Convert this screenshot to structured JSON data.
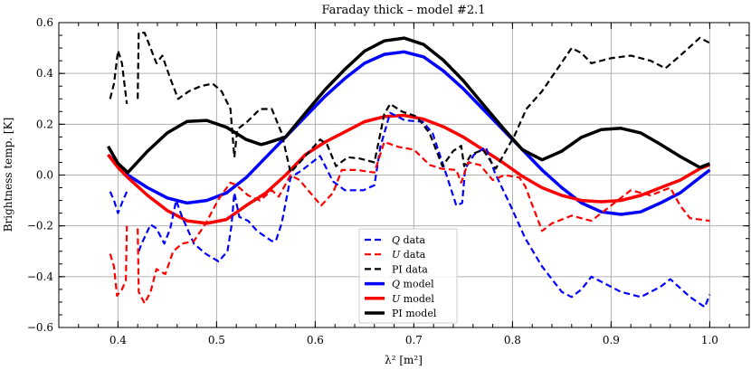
{
  "chart_data": {
    "type": "line",
    "title": "Faraday thick – model #2.1",
    "xlabel": "λ² [m²]",
    "ylabel": "Brightness temp. [K]",
    "xlim": [
      0.34,
      1.04
    ],
    "ylim": [
      -0.6,
      0.6
    ],
    "xticks": [
      0.4,
      0.5,
      0.6,
      0.7,
      0.8,
      0.9,
      1.0
    ],
    "xtick_labels": [
      "0.4",
      "0.5",
      "0.6",
      "0.7",
      "0.8",
      "0.9",
      "1.0"
    ],
    "yticks": [
      -0.6,
      -0.4,
      -0.2,
      0.0,
      0.2,
      0.4,
      0.6
    ],
    "ytick_labels": [
      "−0.6",
      "−0.4",
      "−0.2",
      "0.0",
      "0.2",
      "0.4",
      "0.6"
    ],
    "grid": true,
    "legend_placement": "bottom-center",
    "series": [
      {
        "name": "Q data",
        "label_italic": "Q",
        "label_rest": " data",
        "style": "dashed",
        "color": "#0000ff",
        "x": [
          0.392,
          0.396,
          0.4,
          0.405,
          0.409,
          null,
          0.421,
          0.424,
          0.433,
          0.439,
          0.447,
          0.453,
          0.459,
          0.465,
          0.477,
          0.489,
          0.502,
          0.511,
          0.515,
          0.518,
          0.523,
          0.532,
          0.541,
          0.556,
          0.56,
          0.566,
          0.575,
          0.587,
          0.605,
          0.618,
          0.63,
          0.649,
          0.66,
          0.666,
          0.676,
          0.691,
          0.709,
          0.719,
          0.731,
          0.743,
          0.749,
          0.752,
          0.761,
          0.773,
          0.782,
          0.798,
          0.813,
          0.83,
          0.85,
          0.86,
          0.87,
          0.88,
          0.89,
          0.91,
          0.93,
          0.95,
          0.96,
          0.98,
          0.995,
          1.0
        ],
        "y": [
          -0.065,
          -0.1,
          -0.15,
          -0.1,
          -0.065,
          null,
          -0.3,
          -0.27,
          -0.195,
          -0.21,
          -0.27,
          -0.21,
          -0.1,
          -0.165,
          -0.27,
          -0.31,
          -0.34,
          -0.3,
          -0.2,
          -0.07,
          -0.165,
          -0.18,
          -0.22,
          -0.26,
          -0.26,
          -0.19,
          -0.01,
          0.02,
          0.075,
          -0.025,
          -0.06,
          -0.06,
          -0.04,
          0.11,
          0.245,
          0.215,
          0.21,
          0.165,
          0.025,
          -0.12,
          -0.11,
          0.025,
          0.08,
          0.11,
          0.01,
          -0.12,
          -0.25,
          -0.36,
          -0.46,
          -0.48,
          -0.45,
          -0.4,
          -0.42,
          -0.46,
          -0.48,
          -0.44,
          -0.41,
          -0.48,
          -0.52,
          -0.47
        ]
      },
      {
        "name": "U data",
        "label_italic": "U",
        "label_rest": " data",
        "style": "dashed",
        "color": "#ff0000",
        "x": [
          0.392,
          0.396,
          0.399,
          0.404,
          0.408,
          0.409,
          null,
          0.42,
          0.421,
          0.427,
          0.433,
          0.439,
          0.448,
          0.456,
          0.465,
          0.477,
          0.489,
          0.502,
          0.514,
          0.52,
          0.532,
          0.544,
          0.556,
          0.563,
          0.575,
          0.584,
          0.606,
          0.618,
          0.627,
          0.642,
          0.66,
          0.67,
          0.685,
          0.7,
          0.716,
          0.728,
          0.743,
          0.748,
          0.755,
          0.767,
          0.78,
          0.792,
          0.807,
          0.813,
          0.83,
          0.84,
          0.86,
          0.88,
          0.9,
          0.92,
          0.94,
          0.96,
          0.97,
          0.98,
          1.0
        ],
        "y": [
          -0.31,
          -0.36,
          -0.475,
          -0.45,
          -0.415,
          -0.2,
          null,
          -0.21,
          -0.46,
          -0.505,
          -0.46,
          -0.37,
          -0.39,
          -0.3,
          -0.27,
          -0.26,
          -0.19,
          -0.095,
          -0.03,
          -0.04,
          -0.08,
          -0.1,
          -0.06,
          -0.085,
          0.0,
          -0.02,
          -0.12,
          -0.07,
          0.02,
          0.02,
          0.01,
          0.13,
          0.11,
          0.1,
          0.04,
          0.025,
          0.02,
          -0.03,
          0.05,
          0.04,
          -0.02,
          0.0,
          -0.01,
          -0.045,
          -0.22,
          -0.19,
          -0.16,
          -0.18,
          -0.12,
          -0.06,
          -0.08,
          -0.05,
          -0.12,
          -0.17,
          -0.18
        ]
      },
      {
        "name": "PI data",
        "label_italic": "",
        "label_rest": "PI data",
        "style": "dashed",
        "color": "#000000",
        "x": [
          0.392,
          0.396,
          0.4,
          0.404,
          0.409,
          null,
          0.42,
          0.421,
          0.427,
          0.439,
          0.445,
          0.453,
          0.461,
          0.472,
          0.484,
          0.496,
          0.505,
          0.514,
          0.518,
          0.521,
          0.531,
          0.544,
          0.556,
          0.566,
          0.575,
          0.589,
          0.605,
          0.612,
          0.621,
          0.633,
          0.645,
          0.66,
          0.67,
          0.676,
          0.688,
          0.703,
          0.716,
          0.729,
          0.74,
          0.748,
          0.751,
          0.758,
          0.77,
          0.783,
          0.802,
          0.814,
          0.83,
          0.86,
          0.87,
          0.88,
          0.9,
          0.92,
          0.94,
          0.955,
          0.97,
          0.99,
          1.0
        ],
        "y": [
          0.3,
          0.36,
          0.49,
          0.44,
          0.28,
          null,
          0.3,
          0.56,
          0.56,
          0.44,
          0.47,
          0.38,
          0.3,
          0.33,
          0.35,
          0.36,
          0.33,
          0.26,
          0.07,
          0.18,
          0.21,
          0.26,
          0.26,
          0.165,
          0.01,
          0.07,
          0.14,
          0.12,
          0.035,
          0.07,
          0.065,
          0.05,
          0.24,
          0.28,
          0.25,
          0.23,
          0.165,
          0.035,
          0.095,
          0.115,
          0.035,
          0.08,
          0.1,
          0.025,
          0.155,
          0.26,
          0.33,
          0.5,
          0.48,
          0.44,
          0.46,
          0.47,
          0.45,
          0.42,
          0.47,
          0.54,
          0.52
        ]
      },
      {
        "name": "Q model",
        "label_italic": "Q",
        "label_rest": " model",
        "style": "solid",
        "color": "#0000ff",
        "x": [
          0.39,
          0.4,
          0.41,
          0.43,
          0.45,
          0.47,
          0.49,
          0.51,
          0.53,
          0.55,
          0.57,
          0.59,
          0.61,
          0.63,
          0.65,
          0.67,
          0.69,
          0.71,
          0.73,
          0.75,
          0.77,
          0.79,
          0.81,
          0.83,
          0.85,
          0.87,
          0.89,
          0.91,
          0.93,
          0.95,
          0.97,
          0.99,
          1.0
        ],
        "y": [
          0.08,
          0.035,
          0.0,
          -0.05,
          -0.09,
          -0.11,
          -0.1,
          -0.07,
          -0.01,
          0.07,
          0.15,
          0.23,
          0.31,
          0.38,
          0.44,
          0.475,
          0.485,
          0.465,
          0.41,
          0.34,
          0.26,
          0.18,
          0.1,
          0.02,
          -0.05,
          -0.11,
          -0.145,
          -0.155,
          -0.145,
          -0.11,
          -0.07,
          -0.01,
          0.02
        ]
      },
      {
        "name": "U model",
        "label_italic": "U",
        "label_rest": " model",
        "style": "solid",
        "color": "#ff0000",
        "x": [
          0.39,
          0.4,
          0.41,
          0.43,
          0.45,
          0.47,
          0.49,
          0.51,
          0.53,
          0.55,
          0.57,
          0.59,
          0.61,
          0.63,
          0.65,
          0.67,
          0.69,
          0.71,
          0.73,
          0.75,
          0.77,
          0.79,
          0.81,
          0.83,
          0.85,
          0.87,
          0.89,
          0.91,
          0.93,
          0.95,
          0.97,
          0.99,
          1.0
        ],
        "y": [
          0.08,
          0.03,
          -0.01,
          -0.08,
          -0.14,
          -0.18,
          -0.19,
          -0.175,
          -0.12,
          -0.07,
          0.0,
          0.08,
          0.13,
          0.17,
          0.21,
          0.23,
          0.235,
          0.22,
          0.19,
          0.15,
          0.1,
          0.05,
          -0.005,
          -0.05,
          -0.08,
          -0.1,
          -0.105,
          -0.1,
          -0.08,
          -0.05,
          -0.02,
          0.025,
          0.04
        ]
      },
      {
        "name": "PI model",
        "label_italic": "",
        "label_rest": "PI model",
        "style": "solid",
        "color": "#000000",
        "x": [
          0.39,
          0.4,
          0.41,
          0.43,
          0.45,
          0.47,
          0.49,
          0.51,
          0.53,
          0.545,
          0.55,
          0.57,
          0.59,
          0.61,
          0.63,
          0.65,
          0.67,
          0.69,
          0.71,
          0.73,
          0.75,
          0.77,
          0.79,
          0.81,
          0.83,
          0.85,
          0.87,
          0.89,
          0.91,
          0.93,
          0.95,
          0.97,
          0.99,
          1.0
        ],
        "y": [
          0.113,
          0.046,
          0.01,
          0.094,
          0.166,
          0.211,
          0.215,
          0.188,
          0.14,
          0.12,
          0.125,
          0.15,
          0.244,
          0.336,
          0.416,
          0.488,
          0.528,
          0.539,
          0.514,
          0.452,
          0.372,
          0.279,
          0.187,
          0.1,
          0.06,
          0.094,
          0.149,
          0.179,
          0.184,
          0.166,
          0.121,
          0.073,
          0.03,
          0.045
        ]
      }
    ]
  }
}
